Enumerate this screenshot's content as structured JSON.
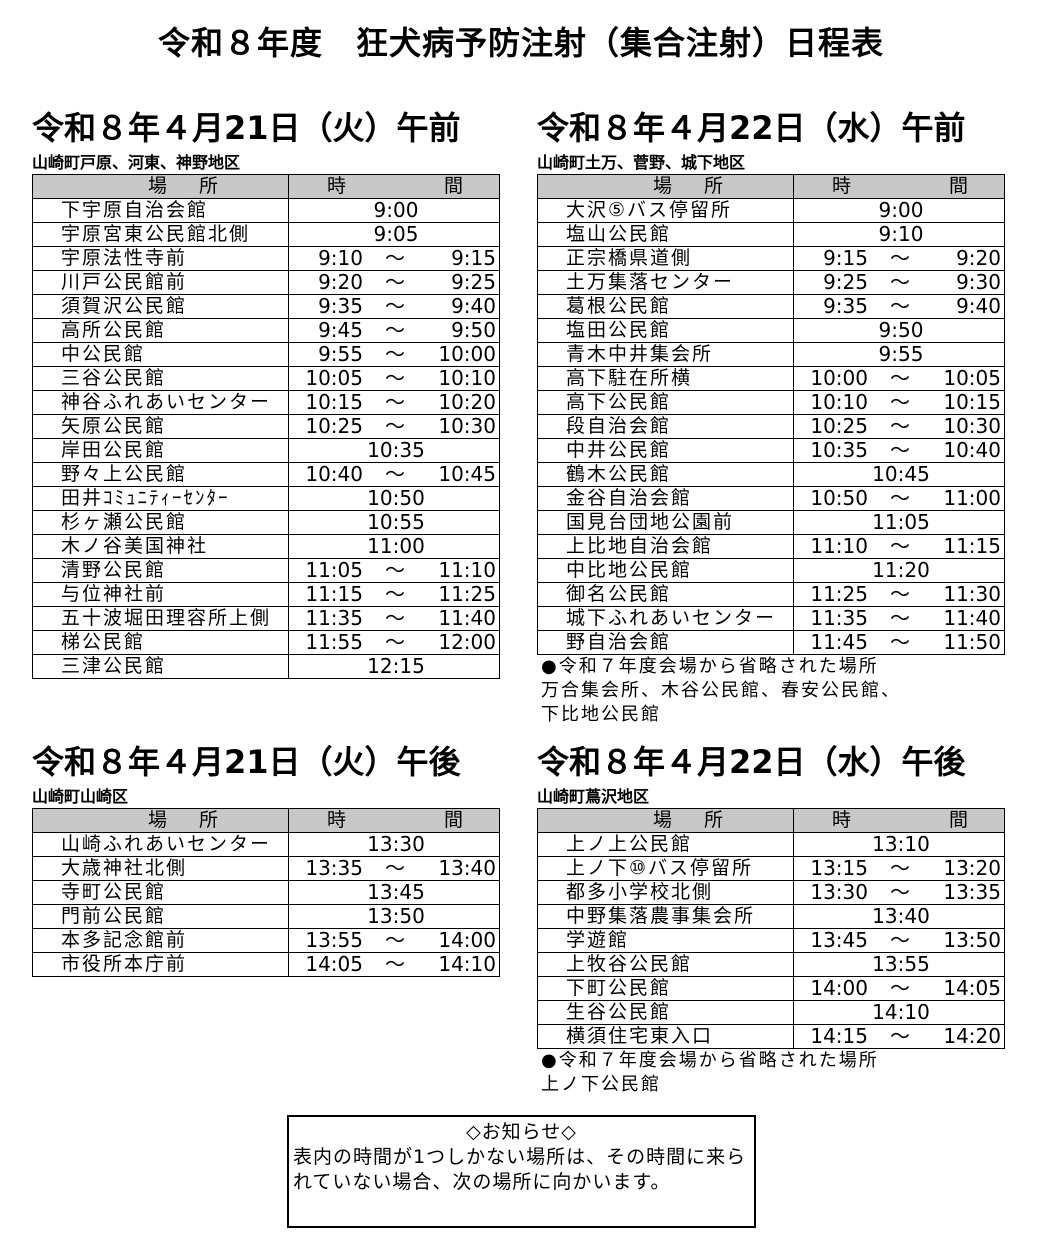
{
  "title": "令和８年度　狂犬病予防注射（集合注射）日程表",
  "header_labels": {
    "place_a": "場",
    "place_b": "所",
    "time_a": "時",
    "time_b": "間"
  },
  "tilde": "～",
  "blocks": [
    {
      "heading": "令和８年４月21日（火）午前",
      "area": "山崎町戸原、河東、神野地区",
      "rows": [
        {
          "place": "下宇原自治会館",
          "start": "9:00",
          "end": ""
        },
        {
          "place": "宇原宮東公民館北側",
          "start": "9:05",
          "end": ""
        },
        {
          "place": "宇原法性寺前",
          "start": "9:10",
          "end": "9:15"
        },
        {
          "place": "川戸公民館前",
          "start": "9:20",
          "end": "9:25"
        },
        {
          "place": "須賀沢公民館",
          "start": "9:35",
          "end": "9:40"
        },
        {
          "place": "高所公民館",
          "start": "9:45",
          "end": "9:50"
        },
        {
          "place": "中公民館",
          "start": "9:55",
          "end": "10:00"
        },
        {
          "place": "三谷公民館",
          "start": "10:05",
          "end": "10:10"
        },
        {
          "place": "神谷ふれあいセンター",
          "start": "10:15",
          "end": "10:20"
        },
        {
          "place": "矢原公民館",
          "start": "10:25",
          "end": "10:30"
        },
        {
          "place": "岸田公民館",
          "start": "10:35",
          "end": ""
        },
        {
          "place": "野々上公民館",
          "start": "10:40",
          "end": "10:45"
        },
        {
          "place": "田井ｺﾐｭﾆﾃｨｰｾﾝﾀｰ",
          "start": "10:50",
          "end": ""
        },
        {
          "place": "杉ヶ瀬公民館",
          "start": "10:55",
          "end": ""
        },
        {
          "place": "木ノ谷美国神社",
          "start": "11:00",
          "end": ""
        },
        {
          "place": "清野公民館",
          "start": "11:05",
          "end": "11:10"
        },
        {
          "place": "与位神社前",
          "start": "11:15",
          "end": "11:25"
        },
        {
          "place": "五十波堀田理容所上側",
          "start": "11:35",
          "end": "11:40"
        },
        {
          "place": "梯公民館",
          "start": "11:55",
          "end": "12:00"
        },
        {
          "place": "三津公民館",
          "start": "12:15",
          "end": ""
        }
      ],
      "notes": []
    },
    {
      "heading": "令和８年４月22日（水）午前",
      "area": "山崎町土万、菅野、城下地区",
      "rows": [
        {
          "place": "大沢⑤バス停留所",
          "start": "9:00",
          "end": ""
        },
        {
          "place": "塩山公民館",
          "start": "9:10",
          "end": ""
        },
        {
          "place": "正宗橋県道側",
          "start": "9:15",
          "end": "9:20"
        },
        {
          "place": "土万集落センター",
          "start": "9:25",
          "end": "9:30"
        },
        {
          "place": "葛根公民館",
          "start": "9:35",
          "end": "9:40"
        },
        {
          "place": "塩田公民館",
          "start": "9:50",
          "end": ""
        },
        {
          "place": "青木中井集会所",
          "start": "9:55",
          "end": ""
        },
        {
          "place": "高下駐在所横",
          "start": "10:00",
          "end": "10:05"
        },
        {
          "place": "高下公民館",
          "start": "10:10",
          "end": "10:15"
        },
        {
          "place": "段自治会館",
          "start": "10:25",
          "end": "10:30"
        },
        {
          "place": "中井公民館",
          "start": "10:35",
          "end": "10:40"
        },
        {
          "place": "鶴木公民館",
          "start": "10:45",
          "end": ""
        },
        {
          "place": "金谷自治会館",
          "start": "10:50",
          "end": "11:00"
        },
        {
          "place": "国見台団地公園前",
          "start": "11:05",
          "end": ""
        },
        {
          "place": "上比地自治会館",
          "start": "11:10",
          "end": "11:15"
        },
        {
          "place": "中比地公民館",
          "start": "11:20",
          "end": ""
        },
        {
          "place": "御名公民館",
          "start": "11:25",
          "end": "11:30"
        },
        {
          "place": "城下ふれあいセンター",
          "start": "11:35",
          "end": "11:40"
        },
        {
          "place": "野自治会館",
          "start": "11:45",
          "end": "11:50"
        }
      ],
      "notes": [
        "●令和７年度会場から省略された場所",
        "万合集会所、木谷公民館、春安公民館、",
        "下比地公民館"
      ]
    },
    {
      "heading": "令和８年４月21日（火）午後",
      "area": "山崎町山崎区",
      "rows": [
        {
          "place": "山崎ふれあいセンター",
          "start": "13:30",
          "end": ""
        },
        {
          "place": "大歳神社北側",
          "start": "13:35",
          "end": "13:40"
        },
        {
          "place": "寺町公民館",
          "start": "13:45",
          "end": ""
        },
        {
          "place": "門前公民館",
          "start": "13:50",
          "end": ""
        },
        {
          "place": "本多記念館前",
          "start": "13:55",
          "end": "14:00"
        },
        {
          "place": "市役所本庁前",
          "start": "14:05",
          "end": "14:10"
        }
      ],
      "notes": []
    },
    {
      "heading": "令和８年４月22日（水）午後",
      "area": "山崎町蔦沢地区",
      "rows": [
        {
          "place": "上ノ上公民館",
          "start": "13:10",
          "end": ""
        },
        {
          "place": "上ノ下⑩バス停留所",
          "start": "13:15",
          "end": "13:20"
        },
        {
          "place": "都多小学校北側",
          "start": "13:30",
          "end": "13:35"
        },
        {
          "place": "中野集落農事集会所",
          "start": "13:40",
          "end": ""
        },
        {
          "place": "学遊館",
          "start": "13:45",
          "end": "13:50"
        },
        {
          "place": "上牧谷公民館",
          "start": "13:55",
          "end": ""
        },
        {
          "place": "下町公民館",
          "start": "14:00",
          "end": "14:05"
        },
        {
          "place": "生谷公民館",
          "start": "14:10",
          "end": ""
        },
        {
          "place": "横須住宅東入口",
          "start": "14:15",
          "end": "14:20"
        }
      ],
      "notes": [
        "●令和７年度会場から省略された場所",
        "上ノ下公民館"
      ]
    }
  ],
  "notice": {
    "title": "◇お知らせ◇",
    "body": "表内の時間が1つしかない場所は、その時間に来られていない場合、次の場所に向かいます。"
  }
}
